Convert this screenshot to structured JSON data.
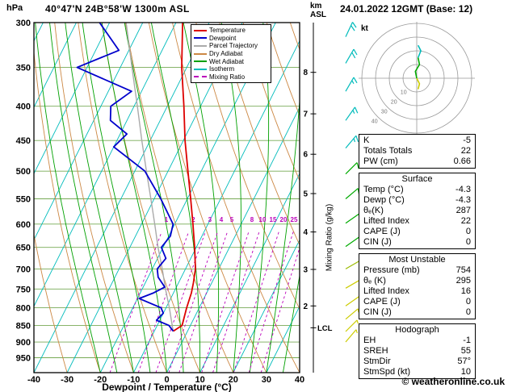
{
  "header": {
    "pressure_unit": "hPa",
    "station_title": "40°47'N 24B°58'W 1300m ASL",
    "km_label": "km",
    "asl_label": "ASL",
    "datetime": "24.01.2022 12GMT (Base: 12)"
  },
  "axes": {
    "pressure_ticks": [
      300,
      350,
      400,
      450,
      500,
      550,
      600,
      650,
      700,
      750,
      800,
      850,
      900,
      950
    ],
    "temp_ticks": [
      -40,
      -30,
      -20,
      -10,
      0,
      10,
      20,
      30,
      40
    ],
    "xlabel": "Dewpoint / Temperature (°C)",
    "km_ticks": [
      2,
      3,
      4,
      5,
      6,
      7,
      8
    ],
    "lcl_label": "LCL",
    "mixing_ratio_axis_label": "Mixing Ratio (g/kg)",
    "mixing_ratio_values": [
      1,
      2,
      3,
      4,
      5,
      8,
      10,
      15,
      20,
      25
    ]
  },
  "legend": {
    "items": [
      {
        "id": "temperature",
        "label": "Temperature",
        "color": "#dd0000"
      },
      {
        "id": "dewpoint",
        "label": "Dewpoint",
        "color": "#0000cc"
      },
      {
        "id": "parcel",
        "label": "Parcel Trajectory",
        "color": "#aaaaaa"
      },
      {
        "id": "dry-adiabat",
        "label": "Dry Adiabat",
        "color": "#cc8844"
      },
      {
        "id": "wet-adiabat",
        "label": "Wet Adiabat",
        "color": "#00a000"
      },
      {
        "id": "isotherm",
        "label": "Isotherm",
        "color": "#00bbbb"
      },
      {
        "id": "mixing-ratio",
        "label": "Mixing Ratio",
        "color": "#bb00bb",
        "dashed": true
      }
    ]
  },
  "chart_data": {
    "type": "skewt-logp",
    "pressure_range": [
      300,
      1000
    ],
    "temp_range": [
      -40,
      40
    ],
    "colors": {
      "grid": "#77aa55",
      "frame": "#000000"
    },
    "lcl_pressure": 857,
    "temperature_profile": [
      [
        867,
        -4.3
      ],
      [
        850,
        -2.5
      ],
      [
        800,
        -3.8
      ],
      [
        760,
        -4.6
      ],
      [
        735,
        -5.5
      ],
      [
        700,
        -7.0
      ],
      [
        650,
        -10.5
      ],
      [
        600,
        -14.5
      ],
      [
        550,
        -19.0
      ],
      [
        500,
        -24.0
      ],
      [
        450,
        -29.5
      ],
      [
        400,
        -35.0
      ],
      [
        350,
        -41.5
      ],
      [
        300,
        -48.0
      ]
    ],
    "dewpoint_profile": [
      [
        867,
        -4.3
      ],
      [
        850,
        -6.5
      ],
      [
        835,
        -11.0
      ],
      [
        815,
        -10.0
      ],
      [
        800,
        -11.5
      ],
      [
        775,
        -19.5
      ],
      [
        760,
        -16.0
      ],
      [
        745,
        -13.5
      ],
      [
        720,
        -17.0
      ],
      [
        700,
        -18.5
      ],
      [
        675,
        -17.5
      ],
      [
        650,
        -20.5
      ],
      [
        625,
        -19.5
      ],
      [
        600,
        -20.5
      ],
      [
        550,
        -28.0
      ],
      [
        500,
        -37.0
      ],
      [
        460,
        -50.0
      ],
      [
        440,
        -48.0
      ],
      [
        420,
        -55.0
      ],
      [
        400,
        -57.0
      ],
      [
        380,
        -53.0
      ],
      [
        350,
        -73.0
      ],
      [
        330,
        -63.0
      ],
      [
        300,
        -73.0
      ]
    ],
    "parcel_profile": [
      [
        867,
        -4.3
      ],
      [
        850,
        -5.5
      ],
      [
        800,
        -9.0
      ],
      [
        750,
        -13.0
      ],
      [
        700,
        -17.0
      ],
      [
        650,
        -21.5
      ],
      [
        600,
        -26.0
      ],
      [
        550,
        -31.0
      ],
      [
        500,
        -36.5
      ],
      [
        450,
        -42.5
      ],
      [
        400,
        -49.0
      ],
      [
        350,
        -56.5
      ],
      [
        300,
        -65.0
      ]
    ],
    "wind_barbs": [
      {
        "p": 315,
        "dir": 25,
        "spd": 20,
        "color": "#00bbbb"
      },
      {
        "p": 345,
        "dir": 30,
        "spd": 20,
        "color": "#00bbbb"
      },
      {
        "p": 380,
        "dir": 30,
        "spd": 15,
        "color": "#00bbbb"
      },
      {
        "p": 420,
        "dir": 35,
        "spd": 15,
        "color": "#00bbbb"
      },
      {
        "p": 462,
        "dir": 40,
        "spd": 15,
        "color": "#00bbbb"
      },
      {
        "p": 505,
        "dir": 45,
        "spd": 10,
        "color": "#00aa00"
      },
      {
        "p": 550,
        "dir": 50,
        "spd": 10,
        "color": "#00aa00"
      },
      {
        "p": 598,
        "dir": 55,
        "spd": 10,
        "color": "#00aa00"
      },
      {
        "p": 648,
        "dir": 55,
        "spd": 10,
        "color": "#00aa00"
      },
      {
        "p": 700,
        "dir": 60,
        "spd": 10,
        "color": "#9bbb00"
      },
      {
        "p": 748,
        "dir": 60,
        "spd": 10,
        "color": "#cccc00"
      },
      {
        "p": 795,
        "dir": 55,
        "spd": 5,
        "color": "#cccc00"
      },
      {
        "p": 832,
        "dir": 50,
        "spd": 5,
        "color": "#cccc00"
      },
      {
        "p": 868,
        "dir": 45,
        "spd": 5,
        "color": "#cccc00"
      },
      {
        "p": 900,
        "dir": 40,
        "spd": 5,
        "color": "#cccc00"
      }
    ],
    "hodograph": {
      "unit": "kt",
      "rings_kt": [
        10,
        20,
        30,
        40
      ],
      "trace_segments": [
        {
          "color": "#cccc00",
          "points": [
            [
              0,
              0
            ],
            [
              2,
              -4
            ],
            [
              1,
              -8
            ]
          ]
        },
        {
          "color": "#00aa00",
          "points": [
            [
              0,
              0
            ],
            [
              -1,
              5
            ],
            [
              2,
              10
            ],
            [
              1,
              15
            ]
          ]
        },
        {
          "color": "#00bbbb",
          "points": [
            [
              1,
              15
            ],
            [
              3,
              20
            ],
            [
              1,
              24
            ]
          ]
        }
      ]
    }
  },
  "stats": {
    "sections": [
      {
        "title": null,
        "rows": [
          [
            "K",
            "-5"
          ],
          [
            "Totals Totals",
            "22"
          ],
          [
            "PW (cm)",
            "0.66"
          ]
        ]
      },
      {
        "title": "Surface",
        "rows": [
          [
            "Temp (°C)",
            "-4.3"
          ],
          [
            "Dewp (°C)",
            "-4.3"
          ],
          [
            "θₑ(K)",
            "287"
          ],
          [
            "Lifted Index",
            "22"
          ],
          [
            "CAPE (J)",
            "0"
          ],
          [
            "CIN (J)",
            "0"
          ]
        ]
      },
      {
        "title": "Most Unstable",
        "rows": [
          [
            "Pressure (mb)",
            "754"
          ],
          [
            "θₑ (K)",
            "295"
          ],
          [
            "Lifted Index",
            "16"
          ],
          [
            "CAPE (J)",
            "0"
          ],
          [
            "CIN (J)",
            "0"
          ]
        ]
      },
      {
        "title": "Hodograph",
        "rows": [
          [
            "EH",
            "-1"
          ],
          [
            "SREH",
            "55"
          ],
          [
            "StmDir",
            "57°"
          ],
          [
            "StmSpd (kt)",
            "10"
          ]
        ]
      }
    ]
  },
  "footer": {
    "copyright": "© weatheronline.co.uk"
  }
}
